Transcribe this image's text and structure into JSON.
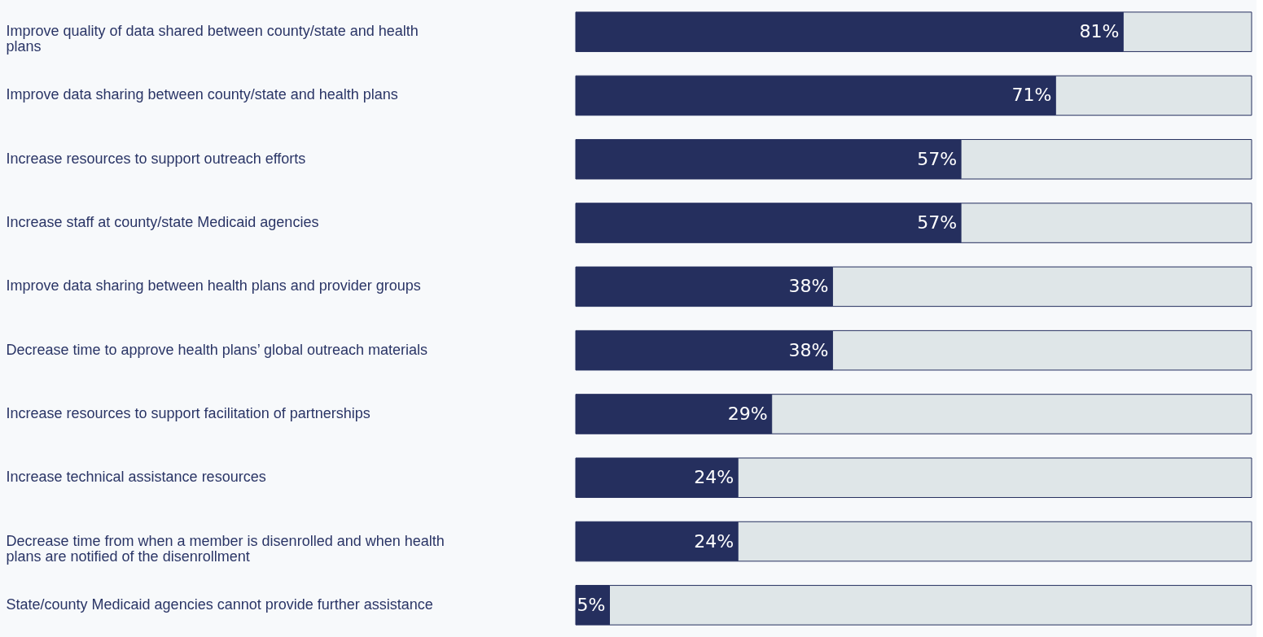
{
  "chart_data": {
    "type": "bar",
    "orientation": "horizontal",
    "stacked": true,
    "xlim": [
      0,
      100
    ],
    "tick_labels": "y",
    "categories": [
      "Improve quality of data shared between county/state and health plans",
      "Improve data sharing between county/state and health plans",
      "Increase resources to support outreach efforts",
      "Increase staff at county/state Medicaid agencies",
      "Improve data sharing between health plans and provider groups",
      "Decrease time to approve health plans’ global outreach materials",
      "Increase resources to support facilitation of partnerships",
      "Increase technical assistance resources",
      "Decrease time from when a member is disenrolled and when health plans are notified of the disenrollment",
      "State/county Medicaid agencies cannot provide further assistance"
    ],
    "series": [
      {
        "color": "#252f5e",
        "values": [
          81,
          71,
          57,
          57,
          38,
          38,
          29,
          24,
          24,
          5
        ],
        "value_labels": [
          "81%",
          "71%",
          "57%",
          "57%",
          "38%",
          "38%",
          "29%",
          "24%",
          "24%",
          "5%"
        ]
      },
      {
        "color": "#dfe6e8",
        "values": [
          19,
          29,
          43,
          43,
          62,
          62,
          71,
          76,
          76,
          95
        ]
      }
    ]
  }
}
